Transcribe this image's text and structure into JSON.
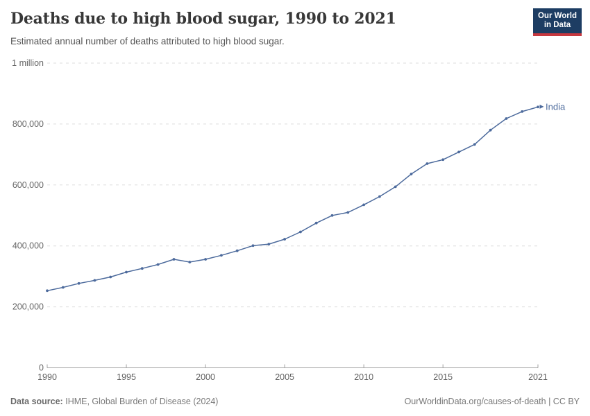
{
  "header": {
    "title": "Deaths due to high blood sugar, 1990 to 2021",
    "subtitle": "Estimated annual number of deaths attributed to high blood sugar.",
    "logo": {
      "line1": "Our World",
      "line2": "in Data",
      "bg_color": "#1d3d63",
      "bar_color": "#c7383f"
    }
  },
  "chart_data": {
    "type": "line",
    "title": "Deaths due to high blood sugar, 1990 to 2021",
    "xlabel": "",
    "ylabel": "",
    "xlim": [
      1990,
      2021
    ],
    "ylim": [
      0,
      1000000
    ],
    "grid": "horizontal-dashed",
    "legend": "end-of-line-label",
    "x": [
      1990,
      1991,
      1992,
      1993,
      1994,
      1995,
      1996,
      1997,
      1998,
      1999,
      2000,
      2001,
      2002,
      2003,
      2004,
      2005,
      2006,
      2007,
      2008,
      2009,
      2010,
      2011,
      2012,
      2013,
      2014,
      2015,
      2016,
      2017,
      2018,
      2019,
      2020,
      2021
    ],
    "series": [
      {
        "name": "India",
        "color": "#4c6a9c",
        "values": [
          253000,
          264000,
          277000,
          287000,
          298000,
          314000,
          326000,
          339000,
          356000,
          347000,
          356000,
          369000,
          384000,
          401000,
          406000,
          422000,
          446000,
          475000,
          500000,
          510000,
          535000,
          562000,
          594000,
          636000,
          670000,
          683000,
          708000,
          733000,
          780000,
          818000,
          841000,
          856000
        ]
      }
    ],
    "yticks": [
      {
        "value": 0,
        "label": "0"
      },
      {
        "value": 200000,
        "label": "200,000"
      },
      {
        "value": 400000,
        "label": "400,000"
      },
      {
        "value": 600000,
        "label": "600,000"
      },
      {
        "value": 800000,
        "label": "800,000"
      },
      {
        "value": 1000000,
        "label": "1 million"
      }
    ],
    "xticks": [
      {
        "value": 1990,
        "label": "1990"
      },
      {
        "value": 1995,
        "label": "1995"
      },
      {
        "value": 2000,
        "label": "2000"
      },
      {
        "value": 2005,
        "label": "2005"
      },
      {
        "value": 2010,
        "label": "2010"
      },
      {
        "value": 2015,
        "label": "2015"
      },
      {
        "value": 2021,
        "label": "2021"
      }
    ]
  },
  "footer": {
    "source_label": "Data source:",
    "source_text": "IHME, Global Burden of Disease (2024)",
    "credit": "OurWorldinData.org/causes-of-death | CC BY"
  }
}
